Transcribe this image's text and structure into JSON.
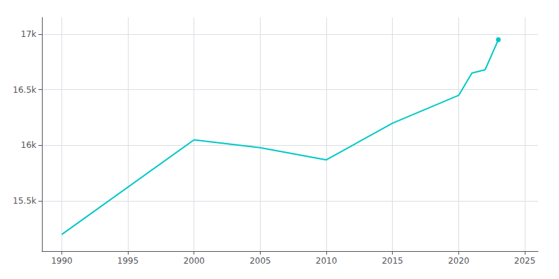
{
  "chart_data": {
    "type": "line",
    "x": [
      1990,
      2000,
      2005,
      2010,
      2015,
      2020,
      2021,
      2022,
      2023
    ],
    "values": [
      15200,
      16050,
      15980,
      15870,
      16200,
      16450,
      16650,
      16680,
      16950
    ],
    "color": "#00c8c8",
    "xlim": [
      1988.5,
      2026
    ],
    "xticks": [
      1990,
      1995,
      2000,
      2005,
      2010,
      2015,
      2020,
      2025
    ],
    "ylim": [
      15050,
      17150
    ],
    "yticks": [
      {
        "value": 15500,
        "label": "15.5k"
      },
      {
        "value": 16000,
        "label": "16k"
      },
      {
        "value": 16500,
        "label": "16.5k"
      },
      {
        "value": 17000,
        "label": "17k"
      }
    ],
    "grid": true
  }
}
